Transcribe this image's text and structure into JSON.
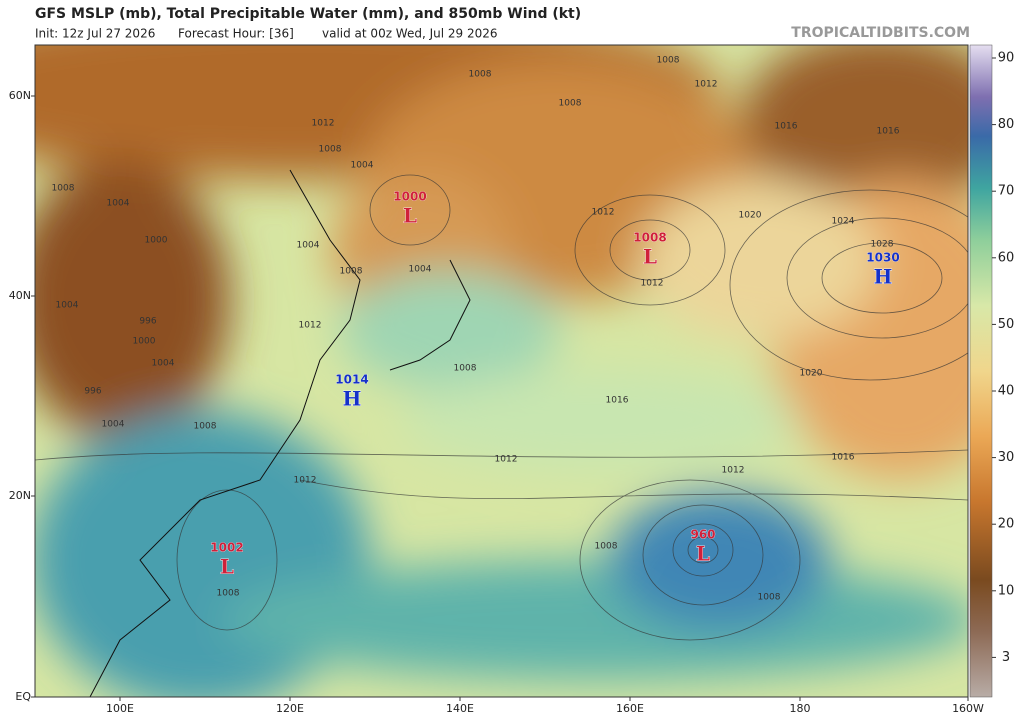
{
  "header": {
    "title": "GFS MSLP (mb), Total Precipitable Water (mm), and 850mb Wind (kt)",
    "init": "Init: 12z Jul 27 2026",
    "forecast_hour": "Forecast Hour: [36]",
    "valid": "valid at 00z Wed, Jul 29 2026",
    "site": "TROPICALTIDBITS.COM"
  },
  "lat_labels": [
    "60N",
    "40N",
    "20N",
    "EQ"
  ],
  "lon_labels": [
    "100E",
    "120E",
    "140E",
    "160E",
    "180",
    "160W"
  ],
  "colorbar_ticks": [
    90,
    80,
    70,
    60,
    50,
    40,
    30,
    20,
    10,
    3
  ],
  "centers": [
    {
      "pressure": "1000",
      "letter": "L"
    },
    {
      "pressure": "1008",
      "letter": "L"
    },
    {
      "pressure": "1030",
      "letter": "H"
    },
    {
      "pressure": "1014",
      "letter": "H"
    },
    {
      "pressure": "1002",
      "letter": "L"
    },
    {
      "pressure": "960",
      "letter": "L"
    }
  ],
  "contour_labels": [
    "1008",
    "1008",
    "1012",
    "1008",
    "1016",
    "1016",
    "1012",
    "1008",
    "1004",
    "1008",
    "1004",
    "1000",
    "1004",
    "1008",
    "1004",
    "1012",
    "1020",
    "1024",
    "1028",
    "1012",
    "1004",
    "996",
    "1000",
    "1012",
    "1004",
    "1008",
    "996",
    "1020",
    "1016",
    "1004",
    "1008",
    "1012",
    "1012",
    "1016",
    "1012",
    "1008",
    "1008",
    "1008"
  ]
}
